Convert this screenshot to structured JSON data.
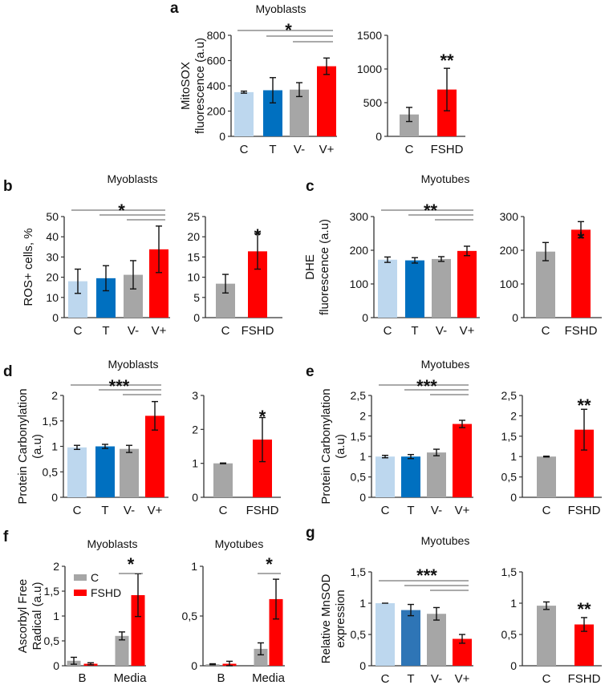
{
  "colors": {
    "C": "#BDD7EE",
    "T": "#0070C0",
    "T_alt": "#2E75B6",
    "V-": "#A6A6A6",
    "V+": "#FF0000",
    "ctrl": "#A6A6A6",
    "FSHD": "#FF0000",
    "axis": "#333333",
    "errorbar": "#111111",
    "bracket": "#555555"
  },
  "chart_data": [
    {
      "id": "a-left",
      "panel": "a",
      "title": "Myoblasts",
      "type": "bar",
      "ylabel": [
        "MitoSOX",
        "fluorescence (a.u)"
      ],
      "categories": [
        "C",
        "T",
        "V-",
        "V+"
      ],
      "values": [
        350,
        365,
        370,
        555
      ],
      "errors": [
        8,
        100,
        55,
        65
      ],
      "bar_colors": [
        "C",
        "T",
        "V-",
        "V+"
      ],
      "ylim": [
        0,
        800
      ],
      "yticks": [
        "0",
        "200",
        "400",
        "600",
        "800"
      ],
      "ytick_values": [
        0,
        200,
        400,
        600,
        800
      ],
      "significance": "*",
      "comparison_lines": 3
    },
    {
      "id": "a-right",
      "panel": "a",
      "title": "",
      "type": "bar",
      "ylabel": [],
      "categories": [
        "C",
        "FSHD"
      ],
      "values": [
        325,
        695
      ],
      "errors": [
        105,
        315
      ],
      "bar_colors": [
        "ctrl",
        "FSHD"
      ],
      "ylim": [
        0,
        1500
      ],
      "yticks": [
        "0",
        "500",
        "1000",
        "1500"
      ],
      "ytick_values": [
        0,
        500,
        1000,
        1500
      ],
      "significance": "**",
      "significance_on": 1
    },
    {
      "id": "b-left",
      "panel": "b",
      "title": "Myoblasts",
      "type": "bar",
      "ylabel": [
        "ROS+ cells, %"
      ],
      "categories": [
        "C",
        "T",
        "V-",
        "V+"
      ],
      "values": [
        18,
        19.5,
        21.2,
        33.8
      ],
      "errors": [
        6,
        6.2,
        7,
        11.5
      ],
      "bar_colors": [
        "C",
        "T",
        "V-",
        "V+"
      ],
      "ylim": [
        0,
        50
      ],
      "yticks": [
        "0",
        "10",
        "20",
        "30",
        "40",
        "50"
      ],
      "ytick_values": [
        0,
        10,
        20,
        30,
        40,
        50
      ],
      "significance": "*",
      "comparison_lines": 3
    },
    {
      "id": "b-right",
      "panel": "b",
      "title": "",
      "type": "bar",
      "ylabel": [],
      "categories": [
        "C",
        "FSHD"
      ],
      "values": [
        8.4,
        16.4
      ],
      "errors": [
        2.3,
        4.4
      ],
      "bar_colors": [
        "ctrl",
        "FSHD"
      ],
      "ylim": [
        0,
        25
      ],
      "yticks": [
        "0",
        "5",
        "10",
        "15",
        "20",
        "25"
      ],
      "ytick_values": [
        0,
        5,
        10,
        15,
        20,
        25
      ],
      "significance": "*",
      "significance_on": 1
    },
    {
      "id": "c-left",
      "panel": "c",
      "title": "Myotubes",
      "type": "bar",
      "ylabel": [
        "DHE",
        "fluorescence (a.u)"
      ],
      "categories": [
        "C",
        "T",
        "V-",
        "V+"
      ],
      "values": [
        172,
        170,
        174,
        198
      ],
      "errors": [
        8,
        8,
        7,
        14
      ],
      "bar_colors": [
        "C",
        "T",
        "V-",
        "V+"
      ],
      "ylim": [
        0,
        300
      ],
      "yticks": [
        "0",
        "100",
        "200",
        "300"
      ],
      "ytick_values": [
        0,
        100,
        200,
        300
      ],
      "significance": "**",
      "comparison_lines": 3
    },
    {
      "id": "c-right",
      "panel": "c",
      "title": "",
      "type": "bar",
      "ylabel": [],
      "categories": [
        "C",
        "FSHD"
      ],
      "values": [
        196,
        261
      ],
      "errors": [
        27,
        24
      ],
      "bar_colors": [
        "ctrl",
        "FSHD"
      ],
      "ylim": [
        0,
        300
      ],
      "yticks": [
        "0",
        "100",
        "200",
        "300"
      ],
      "ytick_values": [
        0,
        100,
        200,
        300
      ],
      "significance": "*",
      "significance_on": 1
    },
    {
      "id": "d-left",
      "panel": "d",
      "title": "Myoblasts",
      "type": "bar",
      "ylabel": [
        "Protein Carbonylation",
        "(a.u)"
      ],
      "categories": [
        "C",
        "T",
        "V-",
        "V+"
      ],
      "values": [
        0.98,
        1.0,
        0.95,
        1.6
      ],
      "errors": [
        0.04,
        0.04,
        0.07,
        0.28
      ],
      "bar_colors": [
        "C",
        "T",
        "V-",
        "V+"
      ],
      "ylim": [
        0,
        2
      ],
      "yticks": [
        "0",
        "0,5",
        "1",
        "1,5",
        "2"
      ],
      "ytick_values": [
        0,
        0.5,
        1,
        1.5,
        2
      ],
      "significance": "***",
      "comparison_lines": 3
    },
    {
      "id": "d-right",
      "panel": "d",
      "title": "",
      "type": "bar",
      "ylabel": [],
      "categories": [
        "C",
        "FSHD"
      ],
      "values": [
        1.0,
        1.7
      ],
      "errors": [
        0.01,
        0.65
      ],
      "bar_colors": [
        "ctrl",
        "FSHD"
      ],
      "ylim": [
        0,
        3
      ],
      "yticks": [
        "0",
        "1",
        "2",
        "3"
      ],
      "ytick_values": [
        0,
        1,
        2,
        3
      ],
      "significance": "*",
      "significance_on": 1
    },
    {
      "id": "e-left",
      "panel": "e",
      "title": "Myotubes",
      "type": "bar",
      "ylabel": [
        "Protein Carbonylation",
        "(a.u)"
      ],
      "categories": [
        "C",
        "T",
        "V-",
        "V+"
      ],
      "values": [
        1.0,
        1.0,
        1.1,
        1.8
      ],
      "errors": [
        0.03,
        0.05,
        0.08,
        0.09
      ],
      "bar_colors": [
        "C",
        "T",
        "V-",
        "V+"
      ],
      "ylim": [
        0,
        2.5
      ],
      "yticks": [
        "0",
        "0,5",
        "1",
        "1,5",
        "2",
        "2,5"
      ],
      "ytick_values": [
        0,
        0.5,
        1,
        1.5,
        2,
        2.5
      ],
      "significance": "***",
      "comparison_lines": 3
    },
    {
      "id": "e-right",
      "panel": "e",
      "title": "",
      "type": "bar",
      "ylabel": [],
      "categories": [
        "C",
        "FSHD"
      ],
      "values": [
        1.0,
        1.66
      ],
      "errors": [
        0.01,
        0.5
      ],
      "bar_colors": [
        "ctrl",
        "FSHD"
      ],
      "ylim": [
        0,
        2.5
      ],
      "yticks": [
        "0",
        "0,5",
        "1",
        "1,5",
        "2",
        "2,5"
      ],
      "ytick_values": [
        0,
        0.5,
        1,
        1.5,
        2,
        2.5
      ],
      "significance": "**",
      "significance_on": 1
    },
    {
      "id": "f-left",
      "panel": "f",
      "title": "Myoblasts",
      "type": "grouped-bar",
      "ylabel": [
        "Ascorbyl Free",
        "Radical (a.u)"
      ],
      "categories": [
        "B",
        "Media"
      ],
      "series": [
        {
          "name": "C",
          "color": "ctrl",
          "values": [
            0.1,
            0.6
          ],
          "errors": [
            0.07,
            0.08
          ]
        },
        {
          "name": "FSHD",
          "color": "FSHD",
          "values": [
            0.04,
            1.42
          ],
          "errors": [
            0.02,
            0.43
          ]
        }
      ],
      "ylim": [
        0,
        2
      ],
      "yticks": [
        "0",
        "0,5",
        "1",
        "1,5",
        "2"
      ],
      "ytick_values": [
        0,
        0.5,
        1,
        1.5,
        2
      ],
      "legend": [
        "C",
        "FSHD"
      ],
      "legend_position": "top-left",
      "significance": "*",
      "significance_on": 1
    },
    {
      "id": "f-right",
      "panel": "f",
      "title": "Myotubes",
      "type": "grouped-bar",
      "ylabel": [],
      "categories": [
        "B",
        "Media"
      ],
      "series": [
        {
          "name": "C",
          "color": "ctrl",
          "values": [
            0.015,
            0.17
          ],
          "errors": [
            0.005,
            0.06
          ]
        },
        {
          "name": "FSHD",
          "color": "FSHD",
          "values": [
            0.02,
            0.67
          ],
          "errors": [
            0.025,
            0.2
          ]
        }
      ],
      "ylim": [
        0,
        1
      ],
      "yticks": [
        "0",
        "0,5",
        "1"
      ],
      "ytick_values": [
        0,
        0.5,
        1
      ],
      "significance": "*",
      "significance_on": 1
    },
    {
      "id": "g-left",
      "panel": "g",
      "title": "Myotubes",
      "type": "bar",
      "ylabel": [
        "Relative MnSOD",
        "expression"
      ],
      "categories": [
        "C",
        "T",
        "V-",
        "V+"
      ],
      "values": [
        1.0,
        0.89,
        0.83,
        0.43
      ],
      "errors": [
        0.0,
        0.09,
        0.1,
        0.07
      ],
      "bar_colors": [
        "C",
        "T_alt",
        "V-",
        "V+"
      ],
      "ylim": [
        0,
        1.5
      ],
      "yticks": [
        "0",
        "0,5",
        "1",
        "1,5"
      ],
      "ytick_values": [
        0,
        0.5,
        1,
        1.5
      ],
      "significance": "***",
      "comparison_lines": 3
    },
    {
      "id": "g-right",
      "panel": "g",
      "title": "",
      "type": "bar",
      "ylabel": [],
      "categories": [
        "C",
        "FSHD"
      ],
      "values": [
        0.96,
        0.66
      ],
      "errors": [
        0.06,
        0.11
      ],
      "bar_colors": [
        "ctrl",
        "FSHD"
      ],
      "ylim": [
        0,
        1.5
      ],
      "yticks": [
        "0",
        "0,5",
        "1",
        "1,5"
      ],
      "ytick_values": [
        0,
        0.5,
        1,
        1.5
      ],
      "significance": "**",
      "significance_on": 1
    }
  ],
  "panels": [
    {
      "letter": "a",
      "title": "Myoblasts"
    },
    {
      "letter": "b",
      "title": "Myoblasts"
    },
    {
      "letter": "c",
      "title": "Myotubes"
    },
    {
      "letter": "d",
      "title": "Myoblasts"
    },
    {
      "letter": "e",
      "title": "Myotubes"
    },
    {
      "letter": "f",
      "title": ""
    },
    {
      "letter": "g",
      "title": "Myotubes"
    }
  ]
}
